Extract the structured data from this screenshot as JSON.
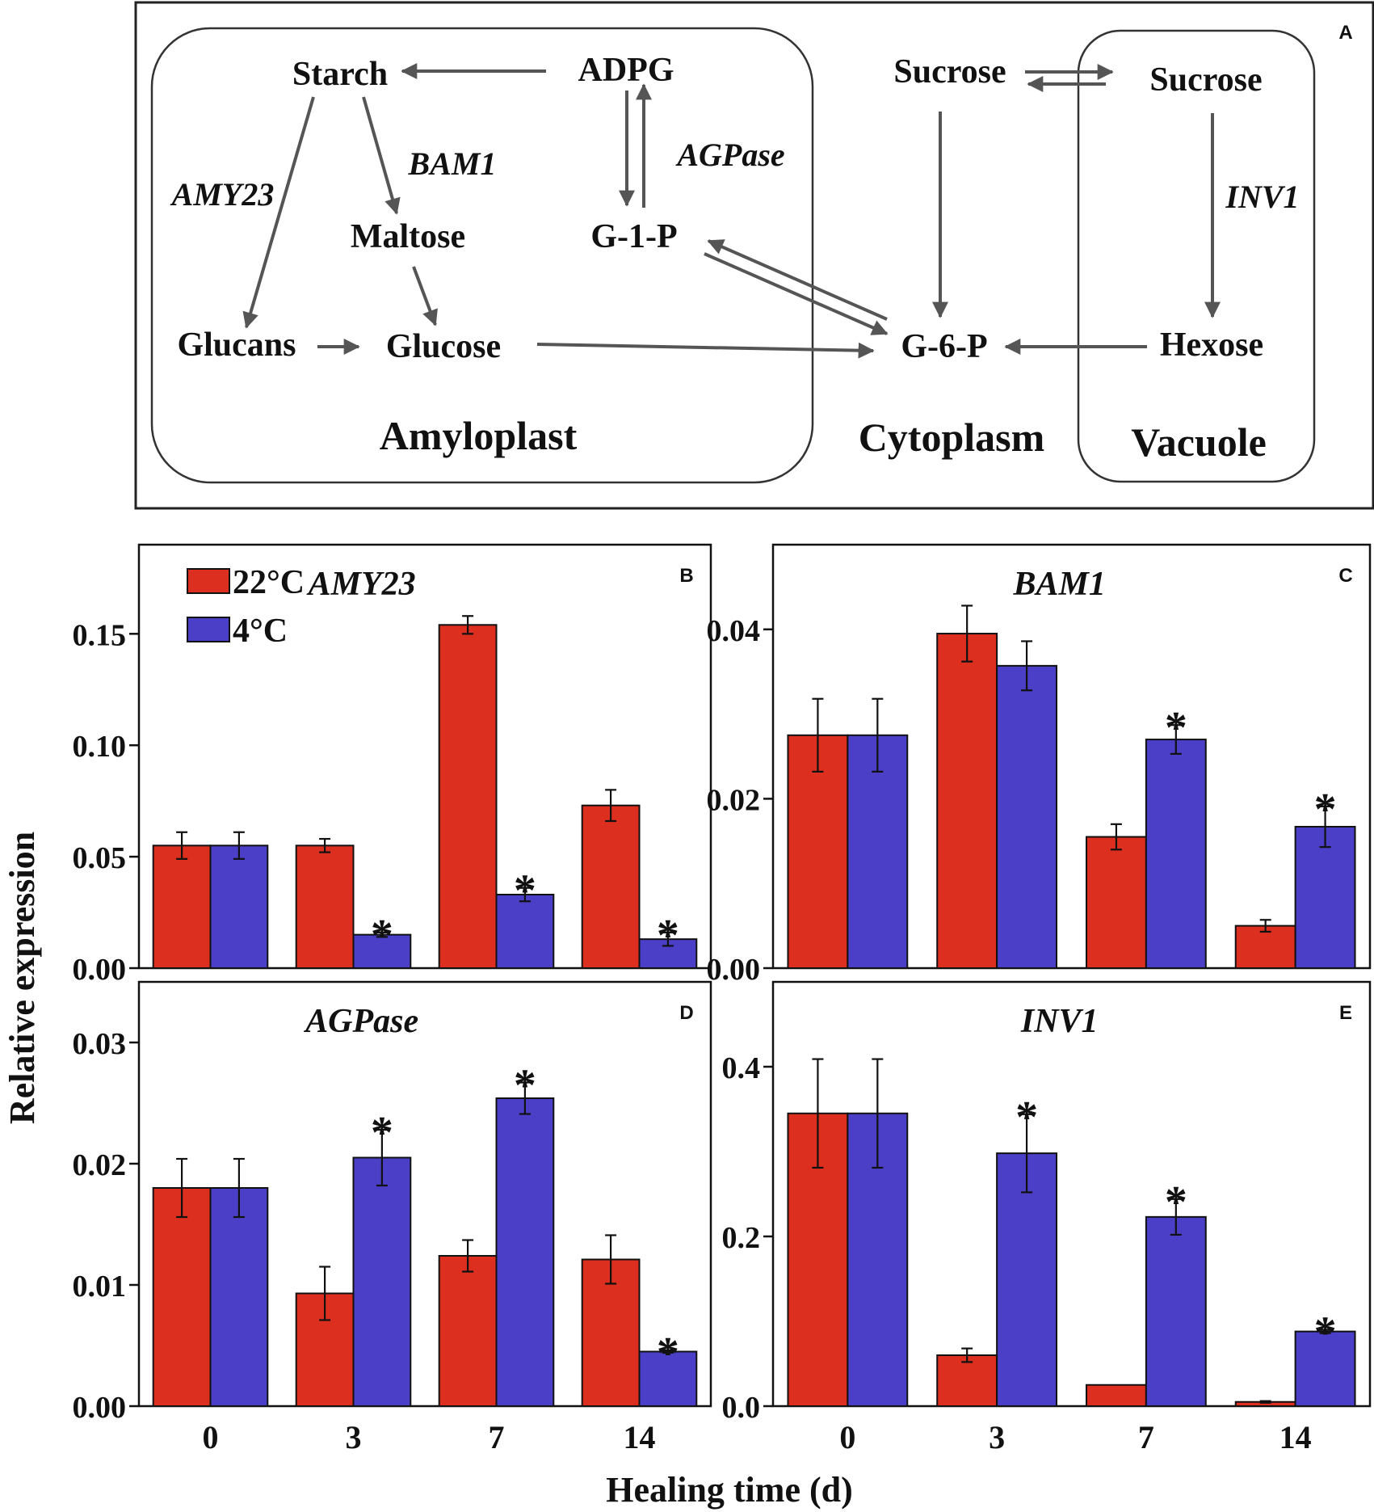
{
  "diagram": {
    "panel_letter": "A",
    "nodes": {
      "starch": "Starch",
      "adpg": "ADPG",
      "maltose": "Maltose",
      "g1p": "G-1-P",
      "glucans": "Glucans",
      "glucose": "Glucose",
      "sucrose_cyto": "Sucrose",
      "sucrose_vac": "Sucrose",
      "g6p": "G-6-P",
      "hexose": "Hexose"
    },
    "enzymes": {
      "amy23": "AMY23",
      "bam1": "BAM1",
      "agpase": "AGPase",
      "inv1": "INV1"
    },
    "compartments": {
      "amyloplast": "Amyloplast",
      "cytoplasm": "Cytoplasm",
      "vacuole": "Vacuole"
    }
  },
  "colors": {
    "c22": "#dc2f1f",
    "c4": "#4a3fc6",
    "arrow": "#555555"
  },
  "shared": {
    "ylabel": "Relative expression",
    "xlabel": "Healing time (d)",
    "categories": [
      "0",
      "3",
      "7",
      "14"
    ]
  },
  "legend": {
    "items": [
      "22°C",
      "4°C"
    ]
  },
  "chart_data": [
    {
      "type": "bar",
      "panel": "B",
      "title": "AMY23",
      "categories": [
        "0",
        "3",
        "7",
        "14"
      ],
      "ylim": [
        0,
        0.19
      ],
      "yticks": [
        0,
        0.05,
        0.1,
        0.15
      ],
      "ytick_labels": [
        "0.00",
        "0.05",
        "0.10",
        "0.15"
      ],
      "series": [
        {
          "name": "22°C",
          "values": [
            0.055,
            0.055,
            0.154,
            0.073
          ],
          "errors": [
            0.006,
            0.003,
            0.004,
            0.007
          ],
          "sig": [
            false,
            false,
            false,
            false
          ]
        },
        {
          "name": "4°C",
          "values": [
            0.055,
            0.015,
            0.033,
            0.013
          ],
          "errors": [
            0.006,
            0.001,
            0.003,
            0.003
          ],
          "sig": [
            false,
            true,
            true,
            true
          ]
        }
      ],
      "sig_label": "*"
    },
    {
      "type": "bar",
      "panel": "C",
      "title": "BAM1",
      "categories": [
        "0",
        "3",
        "7",
        "14"
      ],
      "ylim": [
        0,
        0.05
      ],
      "yticks": [
        0,
        0.02,
        0.04
      ],
      "ytick_labels": [
        "0.00",
        "0.02",
        "0.04"
      ],
      "series": [
        {
          "name": "22°C",
          "values": [
            0.0275,
            0.0395,
            0.0155,
            0.005
          ],
          "errors": [
            0.0043,
            0.0033,
            0.0015,
            0.0007
          ],
          "sig": [
            false,
            false,
            false,
            false
          ]
        },
        {
          "name": "4°C",
          "values": [
            0.0275,
            0.0357,
            0.027,
            0.0167
          ],
          "errors": [
            0.0043,
            0.0029,
            0.0017,
            0.0024
          ],
          "sig": [
            false,
            false,
            true,
            true
          ]
        }
      ],
      "sig_label": "*"
    },
    {
      "type": "bar",
      "panel": "D",
      "title": "AGPase",
      "categories": [
        "0",
        "3",
        "7",
        "14"
      ],
      "ylim": [
        0,
        0.035
      ],
      "yticks": [
        0,
        0.01,
        0.02,
        0.03
      ],
      "ytick_labels": [
        "0.00",
        "0.01",
        "0.02",
        "0.03"
      ],
      "series": [
        {
          "name": "22°C",
          "values": [
            0.018,
            0.0093,
            0.0124,
            0.0121
          ],
          "errors": [
            0.0024,
            0.0022,
            0.0013,
            0.002
          ],
          "sig": [
            false,
            false,
            false,
            false
          ]
        },
        {
          "name": "4°C",
          "values": [
            0.018,
            0.0205,
            0.0254,
            0.0045
          ],
          "errors": [
            0.0024,
            0.0023,
            0.0013,
            0.0001
          ],
          "sig": [
            false,
            true,
            true,
            true
          ]
        }
      ],
      "sig_label": "*"
    },
    {
      "type": "bar",
      "panel": "E",
      "title": "INV1",
      "categories": [
        "0",
        "3",
        "7",
        "14"
      ],
      "ylim": [
        0,
        0.5
      ],
      "yticks": [
        0,
        0.2,
        0.4
      ],
      "ytick_labels": [
        "0.0",
        "0.2",
        "0.4"
      ],
      "series": [
        {
          "name": "22°C",
          "values": [
            0.345,
            0.06,
            0.025,
            0.005
          ],
          "errors": [
            0.064,
            0.008,
            0,
            0.001
          ],
          "sig": [
            false,
            false,
            false,
            false
          ]
        },
        {
          "name": "4°C",
          "values": [
            0.345,
            0.298,
            0.223,
            0.088
          ],
          "errors": [
            0.064,
            0.046,
            0.021,
            0.002
          ],
          "sig": [
            false,
            true,
            true,
            true
          ]
        }
      ],
      "sig_label": "*"
    }
  ]
}
